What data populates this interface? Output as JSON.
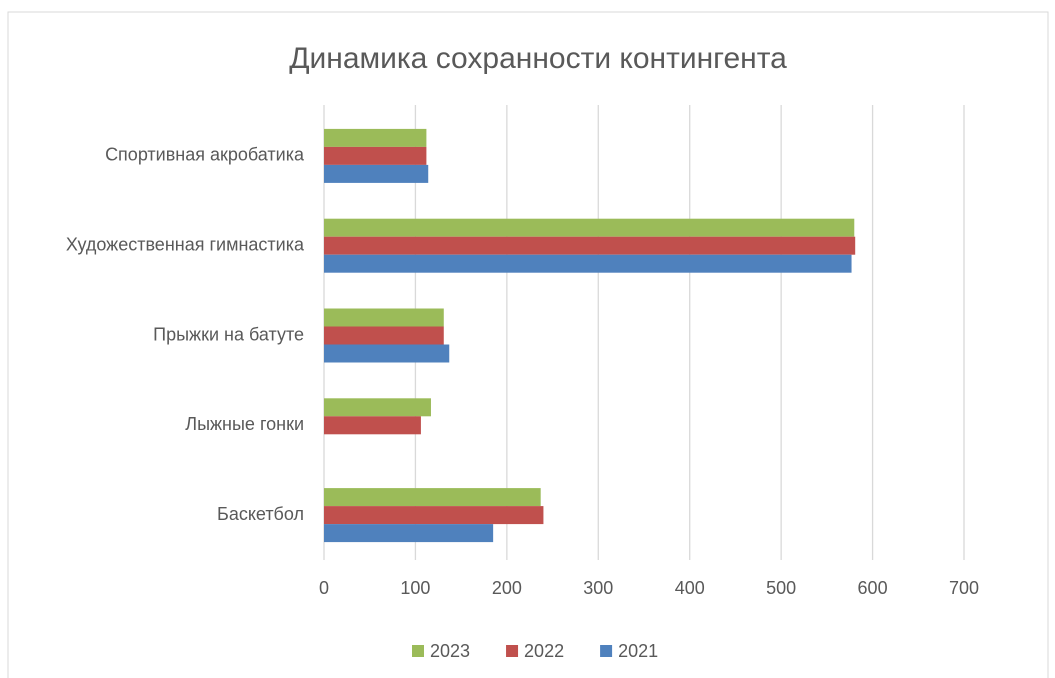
{
  "chart_data": {
    "type": "hbar",
    "title": "Динамика сохранности контингента",
    "categories": [
      "Баскетбол",
      "Лыжные гонки",
      "Прыжки на батуте",
      "Художественная гимнастика",
      "Спортивная акробатика"
    ],
    "series": [
      {
        "name": "2023",
        "color": "#9bbb59",
        "values": [
          237,
          117,
          131,
          580,
          112
        ]
      },
      {
        "name": "2022",
        "color": "#c0504d",
        "values": [
          240,
          106,
          131,
          581,
          112
        ]
      },
      {
        "name": "2021",
        "color": "#4f81bd",
        "values": [
          185,
          null,
          137,
          577,
          114
        ]
      }
    ],
    "xlim": [
      0,
      700
    ],
    "xticks": [
      0,
      100,
      200,
      300,
      400,
      500,
      600,
      700
    ],
    "grid": true,
    "legend": "bottom"
  }
}
